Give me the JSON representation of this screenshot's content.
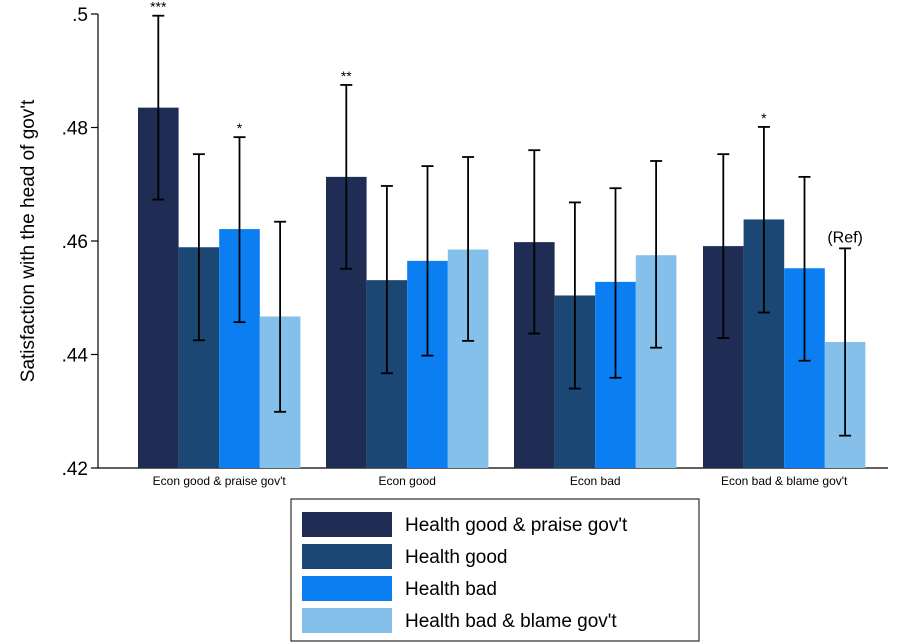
{
  "chart_data": {
    "type": "bar",
    "ylabel": "Satisfaction with the head of gov't",
    "xlabel": "",
    "ylim": [
      0.42,
      0.5
    ],
    "yticks": [
      ".42",
      ".44",
      ".46",
      ".48",
      ".5"
    ],
    "ytick_values": [
      0.42,
      0.44,
      0.46,
      0.48,
      0.5
    ],
    "grid": false,
    "legend_position": "bottom",
    "categories": [
      "Econ good & praise gov't",
      "Econ good",
      "Econ bad",
      "Econ bad & blame gov't"
    ],
    "series": [
      {
        "name": "Health good & praise gov't",
        "color": "#1f2d55",
        "values": [
          0.4835,
          0.4713,
          0.4598,
          0.4591
        ],
        "ci_low": [
          0.4673,
          0.4551,
          0.4437,
          0.4429
        ],
        "ci_high": [
          0.4997,
          0.4875,
          0.476,
          0.4753
        ],
        "labels": [
          "***",
          "**",
          "",
          ""
        ]
      },
      {
        "name": "Health good",
        "color": "#1a4773",
        "values": [
          0.4589,
          0.4531,
          0.4504,
          0.4638
        ],
        "ci_low": [
          0.4425,
          0.4367,
          0.434,
          0.4474
        ],
        "ci_high": [
          0.4753,
          0.4697,
          0.4668,
          0.4801
        ],
        "labels": [
          "",
          "",
          "",
          "*"
        ]
      },
      {
        "name": "Health bad",
        "color": "#0b7ff2",
        "values": [
          0.4621,
          0.4565,
          0.4528,
          0.4552
        ],
        "ci_low": [
          0.4457,
          0.4398,
          0.4359,
          0.4389
        ],
        "ci_high": [
          0.4783,
          0.4732,
          0.4693,
          0.4713
        ],
        "labels": [
          "*",
          "",
          "",
          ""
        ]
      },
      {
        "name": "Health bad & blame gov't",
        "color": "#85c0ea",
        "values": [
          0.4467,
          0.4585,
          0.4575,
          0.4422
        ],
        "ci_low": [
          0.4299,
          0.4424,
          0.4412,
          0.4257
        ],
        "ci_high": [
          0.4634,
          0.4748,
          0.4741,
          0.4587
        ],
        "labels": [
          "",
          "",
          "",
          "(Ref)"
        ]
      }
    ]
  }
}
